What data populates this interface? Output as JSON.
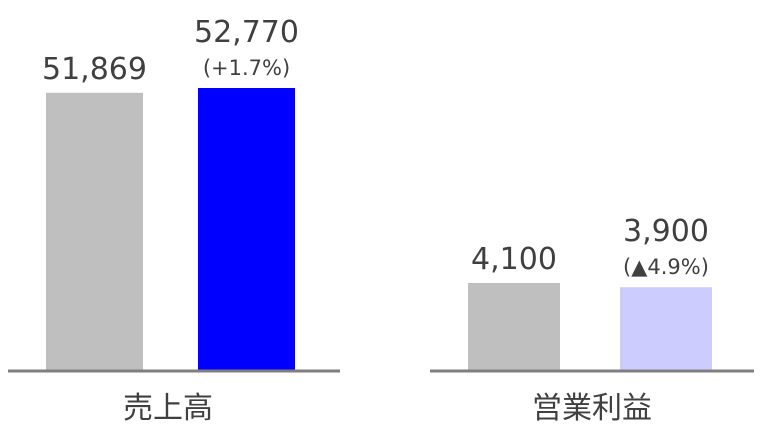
{
  "chart_data": [
    {
      "type": "bar",
      "title": "",
      "categories": [
        "",
        ""
      ],
      "values": [
        51869,
        52770
      ],
      "value_labels": [
        "51,869",
        "52,770"
      ],
      "change_label": "(+1.7%)",
      "group_label": "売上高",
      "colors": [
        "#bfbfbf",
        "#0000ff"
      ],
      "legend": "none",
      "grid": false
    },
    {
      "type": "bar",
      "title": "",
      "categories": [
        "",
        ""
      ],
      "values": [
        4100,
        3900
      ],
      "value_labels": [
        "4,100",
        "3,900"
      ],
      "change_label": "(▲4.9%)",
      "group_label": "営業利益",
      "colors": [
        "#bfbfbf",
        "#ccccff"
      ],
      "legend": "none",
      "grid": false
    }
  ],
  "colors": {
    "axis": "#7f7f7f",
    "text": "#404040"
  }
}
